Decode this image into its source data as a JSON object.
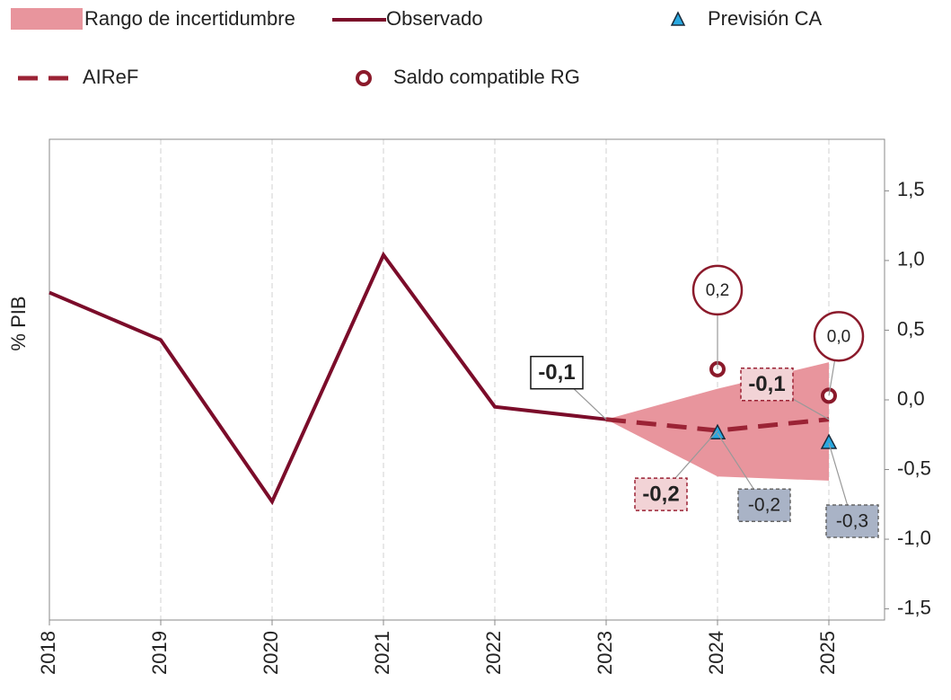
{
  "chart_data": {
    "type": "line",
    "y_label": "% PIB",
    "xlim": [
      2018,
      2025.5
    ],
    "xticks": [
      2018,
      2019,
      2020,
      2021,
      2022,
      2023,
      2024,
      2025
    ],
    "ylim": [
      -1.58,
      1.87
    ],
    "yticks": [
      {
        "value": -1.5,
        "label": "-1,5"
      },
      {
        "value": -1.0,
        "label": "-1,0"
      },
      {
        "value": -0.5,
        "label": "-0,5"
      },
      {
        "value": 0.0,
        "label": "0,0"
      },
      {
        "value": 0.5,
        "label": "0,5"
      },
      {
        "value": 1.0,
        "label": "1,0"
      },
      {
        "value": 1.5,
        "label": "1,5"
      }
    ],
    "y_axis_side": "right",
    "grid": "x",
    "band": {
      "name": "Rango de incertidumbre",
      "color": "#e8959d",
      "x": [
        2023,
        2024,
        2025
      ],
      "upper": [
        -0.14,
        0.08,
        0.27
      ],
      "lower": [
        -0.14,
        -0.55,
        -0.58
      ]
    },
    "series": [
      {
        "name": "Observado",
        "kind": "line",
        "color": "#7b0c2a",
        "x": [
          2018,
          2019,
          2020,
          2021,
          2022,
          2023
        ],
        "values": [
          0.77,
          0.43,
          -0.73,
          1.04,
          -0.05,
          -0.14
        ],
        "value_labels": [
          null,
          null,
          null,
          null,
          null,
          "-0,1"
        ]
      },
      {
        "name": "Previsión CA",
        "kind": "triangle",
        "color": "#29a8e0",
        "x": [
          2024,
          2025
        ],
        "values": [
          -0.24,
          -0.31
        ],
        "value_labels": [
          "-0,2",
          "-0,3"
        ]
      },
      {
        "name": "AIReF",
        "kind": "dashed",
        "color": "#9b2335",
        "x": [
          2023,
          2024,
          2025
        ],
        "values": [
          -0.14,
          -0.22,
          -0.14
        ],
        "value_labels": [
          null,
          "-0,2",
          "-0,1"
        ]
      },
      {
        "name": "Saldo compatible RG",
        "kind": "circle",
        "color": "#8b1a2b",
        "x": [
          2024,
          2025
        ],
        "values": [
          0.22,
          0.03
        ],
        "value_labels": [
          "0,2",
          "0,0"
        ]
      }
    ]
  }
}
